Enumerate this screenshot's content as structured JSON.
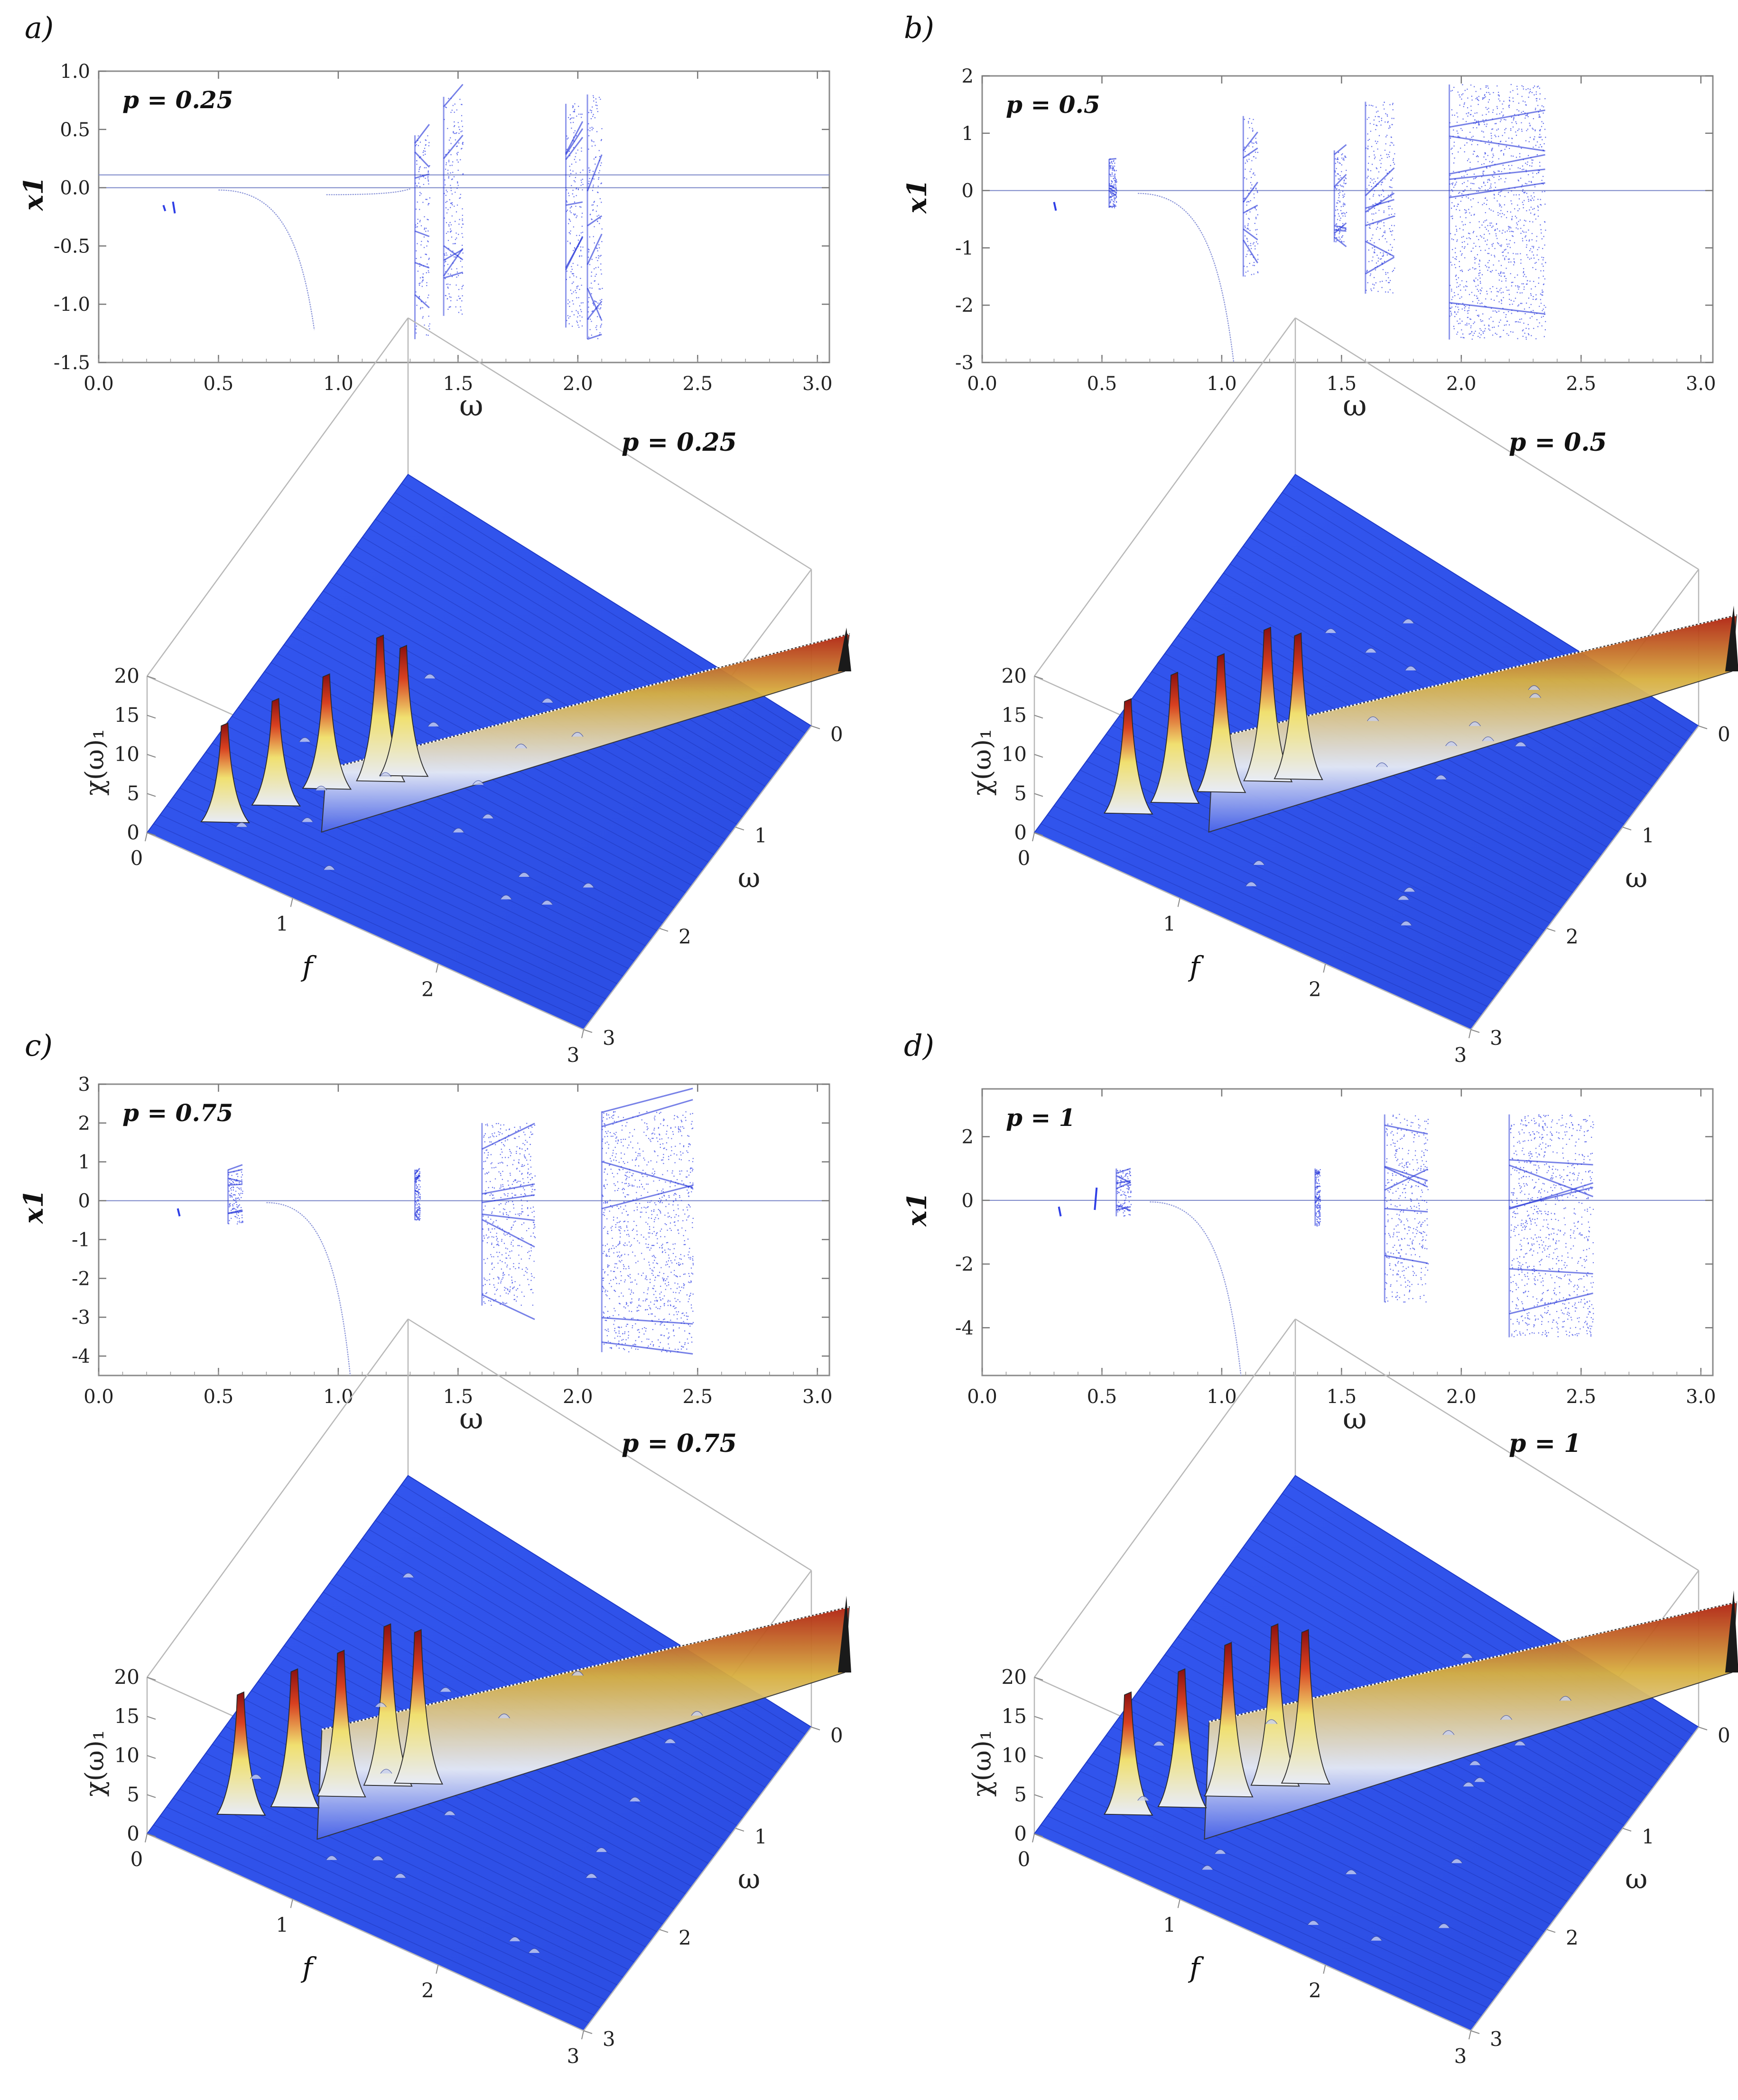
{
  "chart_data": [
    {
      "panel": "a)",
      "type": "scatter",
      "title": "p = 0.25",
      "xlabel": "ω",
      "ylabel": "x1",
      "xlim": [
        0.0,
        3.05
      ],
      "ylim": [
        -1.5,
        1.0
      ],
      "xticks": [
        "0.0",
        "0.5",
        "1.0",
        "1.5",
        "2.0",
        "2.5",
        "3.0"
      ],
      "yticks": [
        "1.0",
        "0.5",
        "0.0",
        "-0.5",
        "-1.0",
        "-1.5"
      ],
      "ytickvals": [
        1.0,
        0.5,
        0.0,
        -0.5,
        -1.0,
        -1.5
      ],
      "color": "#2f3fe6",
      "ref_lines": [
        0.0,
        0.11
      ],
      "chaotic_bands": [
        {
          "x": [
            1.32,
            1.38
          ],
          "y": [
            -1.3,
            0.45
          ]
        },
        {
          "x": [
            1.44,
            1.52
          ],
          "y": [
            -1.1,
            0.78
          ]
        },
        {
          "x": [
            1.95,
            2.02
          ],
          "y": [
            -1.2,
            0.72
          ]
        },
        {
          "x": [
            2.04,
            2.1
          ],
          "y": [
            -1.3,
            0.8
          ]
        }
      ],
      "small_features": [
        {
          "x": 0.27,
          "y": [
            -0.15,
            -0.2
          ]
        },
        {
          "x": 0.31,
          "y": [
            -0.12,
            -0.22
          ]
        }
      ],
      "curves": [
        {
          "x": [
            0.5,
            0.9
          ],
          "y": [
            -0.02,
            -1.22
          ]
        },
        {
          "x": [
            0.95,
            1.3
          ],
          "y": [
            -0.06,
            -0.01
          ]
        }
      ]
    },
    {
      "panel": "b)",
      "type": "scatter",
      "title": "p = 0.5",
      "xlabel": "ω",
      "ylabel": "x1",
      "xlim": [
        0.0,
        3.05
      ],
      "ylim": [
        -3.0,
        2.0
      ],
      "xticks": [
        "0.0",
        "0.5",
        "1.0",
        "1.5",
        "2.0",
        "2.5",
        "3.0"
      ],
      "yticks": [
        "2",
        "1",
        "0",
        "-1",
        "-2",
        "-3"
      ],
      "ytickvals": [
        2,
        1,
        0,
        -1,
        -2,
        -3
      ],
      "color": "#2f3fe6",
      "ref_lines": [
        0.0
      ],
      "chaotic_bands": [
        {
          "x": [
            0.53,
            0.56
          ],
          "y": [
            -0.3,
            0.55
          ]
        },
        {
          "x": [
            1.09,
            1.15
          ],
          "y": [
            -1.5,
            1.3
          ]
        },
        {
          "x": [
            1.47,
            1.52
          ],
          "y": [
            -0.9,
            0.7
          ]
        },
        {
          "x": [
            1.6,
            1.72
          ],
          "y": [
            -1.8,
            1.55
          ]
        },
        {
          "x": [
            1.95,
            2.35
          ],
          "y": [
            -2.6,
            1.85
          ]
        }
      ],
      "small_features": [
        {
          "x": 0.3,
          "y": [
            -0.2,
            -0.35
          ]
        }
      ],
      "curves": [
        {
          "x": [
            0.65,
            1.05
          ],
          "y": [
            -0.05,
            -3.0
          ]
        }
      ]
    },
    {
      "panel": "c)",
      "type": "scatter",
      "title": "p = 0.75",
      "xlabel": "ω",
      "ylabel": "x1",
      "xlim": [
        0.0,
        3.05
      ],
      "ylim": [
        -4.5,
        3.0
      ],
      "xticks": [
        "0.0",
        "0.5",
        "1.0",
        "1.5",
        "2.0",
        "2.5",
        "3.0"
      ],
      "yticks": [
        "3",
        "2",
        "1",
        "0",
        "-1",
        "-2",
        "-3",
        "-4"
      ],
      "ytickvals": [
        3,
        2,
        1,
        0,
        -1,
        -2,
        -3,
        -4
      ],
      "color": "#2f3fe6",
      "ref_lines": [
        0.0
      ],
      "chaotic_bands": [
        {
          "x": [
            0.54,
            0.6
          ],
          "y": [
            -0.6,
            0.8
          ]
        },
        {
          "x": [
            1.32,
            1.34
          ],
          "y": [
            -0.5,
            0.8
          ]
        },
        {
          "x": [
            1.6,
            1.82
          ],
          "y": [
            -2.7,
            2.0
          ]
        },
        {
          "x": [
            2.1,
            2.48
          ],
          "y": [
            -3.9,
            2.3
          ]
        }
      ],
      "small_features": [
        {
          "x": 0.33,
          "y": [
            -0.2,
            -0.4
          ]
        }
      ],
      "curves": [
        {
          "x": [
            0.7,
            1.05
          ],
          "y": [
            -0.05,
            -4.5
          ]
        }
      ]
    },
    {
      "panel": "d)",
      "type": "scatter",
      "title": "p = 1",
      "xlabel": "ω",
      "ylabel": "x1",
      "xlim": [
        0.0,
        3.05
      ],
      "ylim": [
        -5.5,
        3.5
      ],
      "xticks": [
        "0.0",
        "0.5",
        "1.0",
        "1.5",
        "2.0",
        "2.5",
        "3.0"
      ],
      "yticks": [
        "2",
        "0",
        "-2",
        "-4"
      ],
      "ytickvals": [
        2,
        0,
        -2,
        -4
      ],
      "color": "#2f3fe6",
      "ref_lines": [
        0.0
      ],
      "chaotic_bands": [
        {
          "x": [
            0.56,
            0.62
          ],
          "y": [
            -0.5,
            1.0
          ]
        },
        {
          "x": [
            1.39,
            1.41
          ],
          "y": [
            -0.8,
            1.0
          ]
        },
        {
          "x": [
            1.68,
            1.86
          ],
          "y": [
            -3.2,
            2.7
          ]
        },
        {
          "x": [
            2.2,
            2.55
          ],
          "y": [
            -4.3,
            2.7
          ]
        }
      ],
      "small_features": [
        {
          "x": 0.32,
          "y": [
            -0.2,
            -0.5
          ]
        },
        {
          "x": 0.47,
          "y": [
            -0.3,
            0.4
          ]
        }
      ],
      "curves": [
        {
          "x": [
            0.7,
            1.08
          ],
          "y": [
            -0.05,
            -5.5
          ]
        }
      ]
    },
    {
      "panel": "a) bottom",
      "type": "area",
      "title": "p = 0.25",
      "xlabel": "f",
      "ylabel": "χ(ω)₁",
      "zlabel": "ω",
      "zticks": [
        "20",
        "15",
        "10",
        "5",
        "0"
      ],
      "fticks": [
        "0",
        "1",
        "2",
        "3"
      ],
      "wticks": [
        "0",
        "1",
        "2",
        "3"
      ],
      "surface_color": "#3560f0",
      "peaks": [
        {
          "f": 0.35,
          "w": 0.3,
          "h": 12
        },
        {
          "f": 0.55,
          "w": 0.55,
          "h": 13
        },
        {
          "f": 0.75,
          "w": 0.8,
          "h": 14
        },
        {
          "f": 1.0,
          "w": 1.0,
          "h": 18
        },
        {
          "f": 1.1,
          "w": 1.1,
          "h": 16
        }
      ],
      "ridge": {
        "from": [
          0.9,
          0.5
        ],
        "to": [
          3.0,
          3.0
        ],
        "h": 8
      }
    },
    {
      "panel": "b) bottom",
      "type": "area",
      "title": "p = 0.5",
      "xlabel": "f",
      "ylabel": "χ(ω)₁",
      "zlabel": "ω",
      "zticks": [
        "20",
        "15",
        "10",
        "5",
        "0"
      ],
      "fticks": [
        "0",
        "1",
        "2",
        "3"
      ],
      "wticks": [
        "0",
        "1",
        "2",
        "3"
      ],
      "surface_color": "#3560f0",
      "peaks": [
        {
          "f": 0.4,
          "w": 0.4,
          "h": 14
        },
        {
          "f": 0.6,
          "w": 0.6,
          "h": 16
        },
        {
          "f": 0.8,
          "w": 0.8,
          "h": 17
        },
        {
          "f": 1.0,
          "w": 1.0,
          "h": 19
        },
        {
          "f": 1.15,
          "w": 1.1,
          "h": 18
        }
      ],
      "ridge": {
        "from": [
          0.9,
          0.5
        ],
        "to": [
          3.0,
          3.0
        ],
        "h": 12
      }
    },
    {
      "panel": "c) bottom",
      "type": "area",
      "title": "p = 0.75",
      "xlabel": "f",
      "ylabel": "χ(ω)₁",
      "zlabel": "ω",
      "zticks": [
        "20",
        "15",
        "10",
        "5",
        "0"
      ],
      "fticks": [
        "0",
        "1",
        "2",
        "3"
      ],
      "wticks": [
        "0",
        "1",
        "2",
        "3"
      ],
      "surface_color": "#3560f0",
      "peaks": [
        {
          "f": 0.4,
          "w": 0.4,
          "h": 15
        },
        {
          "f": 0.65,
          "w": 0.6,
          "h": 17
        },
        {
          "f": 0.85,
          "w": 0.8,
          "h": 18
        },
        {
          "f": 1.05,
          "w": 1.0,
          "h": 20
        },
        {
          "f": 1.2,
          "w": 1.1,
          "h": 19
        }
      ],
      "ridge": {
        "from": [
          0.9,
          0.45
        ],
        "to": [
          3.0,
          3.0
        ],
        "h": 14
      }
    },
    {
      "panel": "d) bottom",
      "type": "area",
      "title": "p = 1",
      "xlabel": "f",
      "ylabel": "χ(ω)₁",
      "zlabel": "ω",
      "zticks": [
        "20",
        "15",
        "10",
        "5",
        "0"
      ],
      "fticks": [
        "0",
        "1",
        "2",
        "3"
      ],
      "wticks": [
        "0",
        "1",
        "2",
        "3"
      ],
      "surface_color": "#3560f0",
      "peaks": [
        {
          "f": 0.4,
          "w": 0.4,
          "h": 15
        },
        {
          "f": 0.65,
          "w": 0.6,
          "h": 17
        },
        {
          "f": 0.85,
          "w": 0.8,
          "h": 19
        },
        {
          "f": 1.05,
          "w": 1.0,
          "h": 20
        },
        {
          "f": 1.2,
          "w": 1.1,
          "h": 19
        }
      ],
      "ridge": {
        "from": [
          0.9,
          0.45
        ],
        "to": [
          3.0,
          3.0
        ],
        "h": 15
      }
    }
  ]
}
